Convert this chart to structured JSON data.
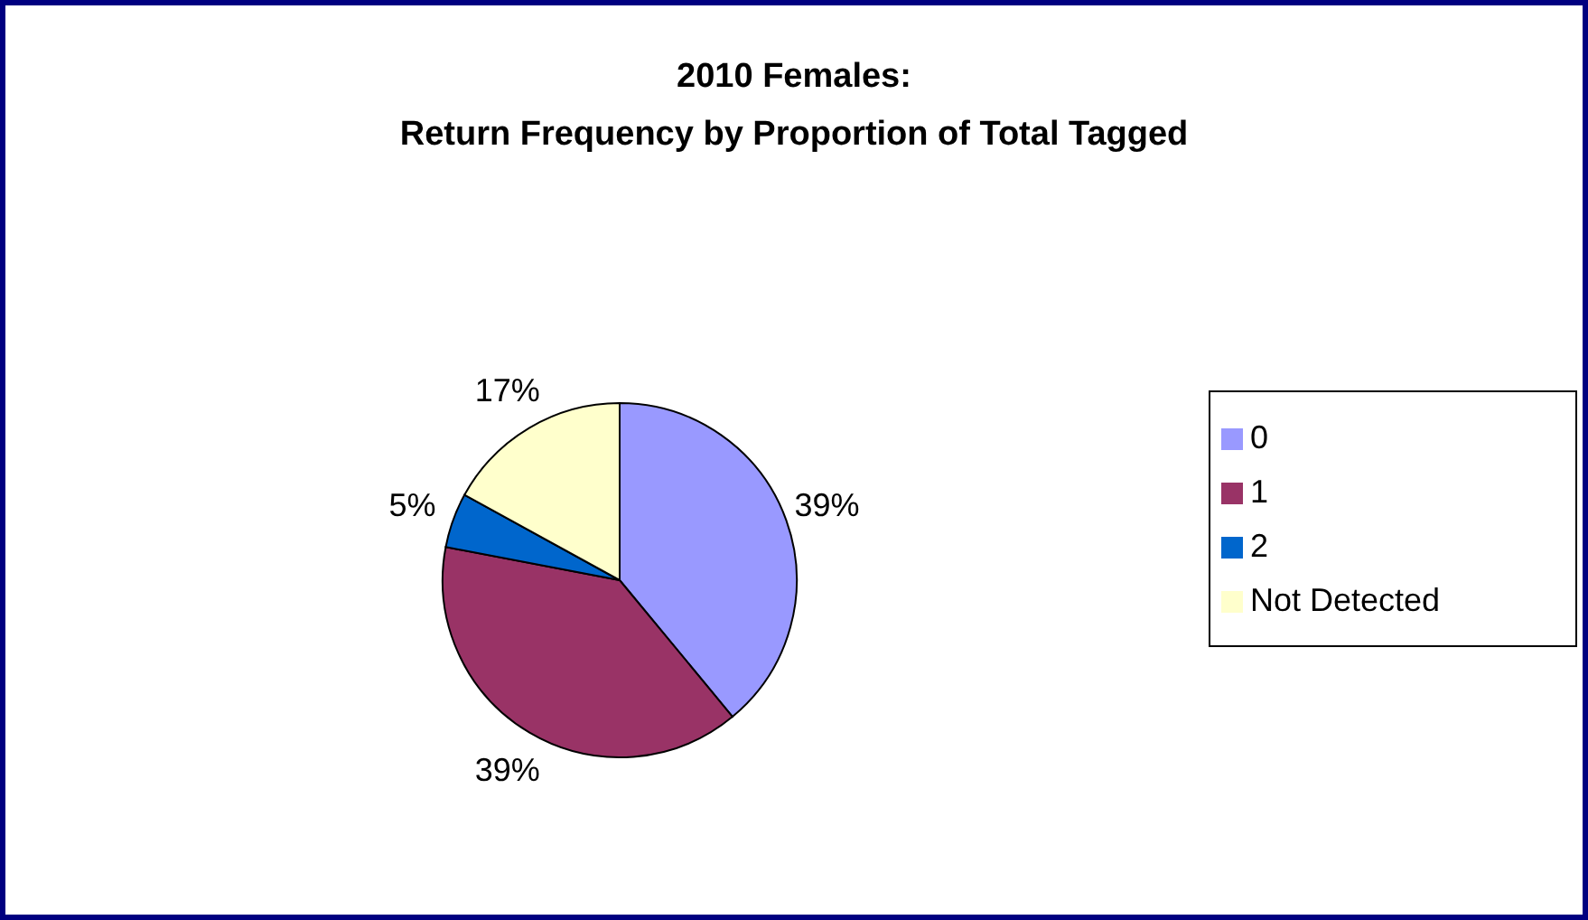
{
  "chart_data": {
    "type": "pie",
    "title": "2010 Females:\nReturn Frequency by Proportion of Total Tagged",
    "categories": [
      "0",
      "1",
      "2",
      "Not Detected"
    ],
    "values": [
      39,
      39,
      5,
      17
    ],
    "colors": [
      "#9999ff",
      "#993366",
      "#0066cc",
      "#ffffcc"
    ],
    "value_labels": [
      "39%",
      "39%",
      "5%",
      "17%"
    ],
    "legend": "right"
  }
}
